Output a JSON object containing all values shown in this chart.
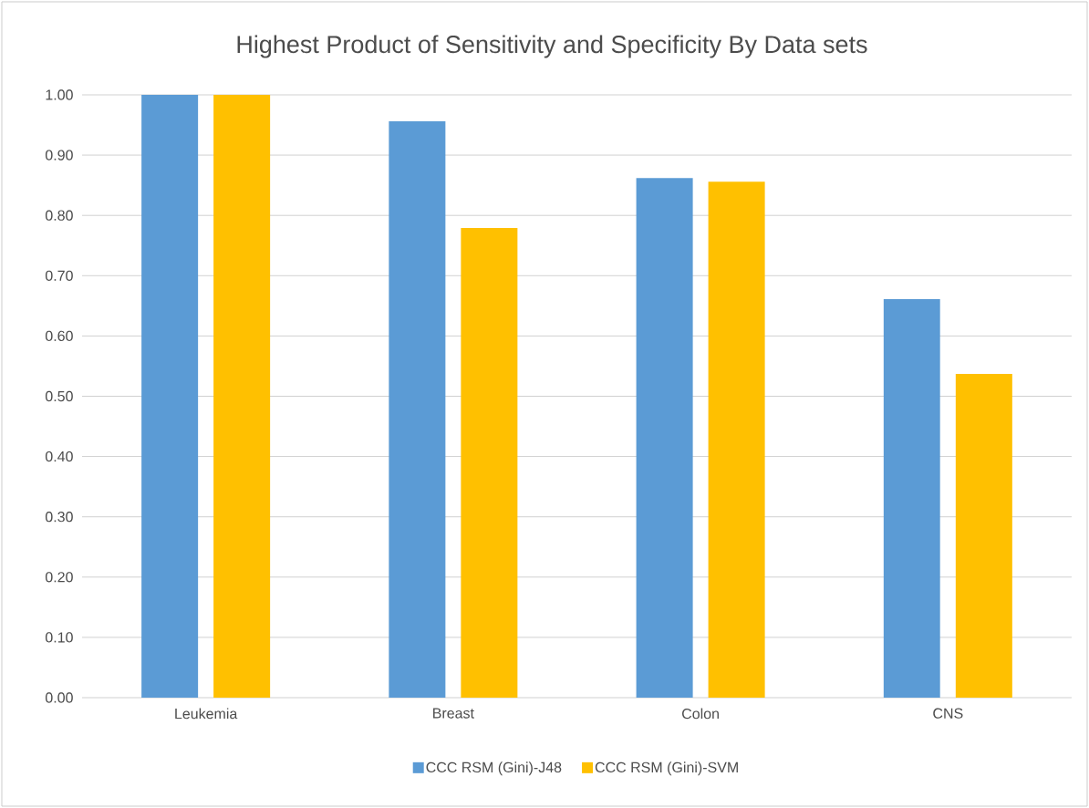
{
  "chart_data": {
    "type": "bar",
    "title": "Highest Product of Sensitivity and Specificity By Data sets",
    "categories": [
      "Leukemia",
      "Breast",
      "Colon",
      "CNS"
    ],
    "series": [
      {
        "name": "CCC RSM (Gini)-J48",
        "color": "#5b9bd5",
        "values": [
          1.0,
          0.956,
          0.862,
          0.661
        ]
      },
      {
        "name": "CCC RSM (Gini)-SVM",
        "color": "#ffc000",
        "values": [
          1.0,
          0.779,
          0.856,
          0.537
        ]
      }
    ],
    "ylim": [
      0,
      1
    ],
    "yticks": [
      {
        "value": 0,
        "label": "0.00"
      },
      {
        "value": 0.1,
        "label": "0.10"
      },
      {
        "value": 0.2,
        "label": "0.20"
      },
      {
        "value": 0.3,
        "label": "0.30"
      },
      {
        "value": 0.4,
        "label": "0.40"
      },
      {
        "value": 0.5,
        "label": "0.50"
      },
      {
        "value": 0.6,
        "label": "0.60"
      },
      {
        "value": 0.7,
        "label": "0.70"
      },
      {
        "value": 0.8,
        "label": "0.80"
      },
      {
        "value": 0.9,
        "label": "0.90"
      },
      {
        "value": 1.0,
        "label": "1.00"
      }
    ],
    "grid": "y",
    "legend": "bottom"
  }
}
